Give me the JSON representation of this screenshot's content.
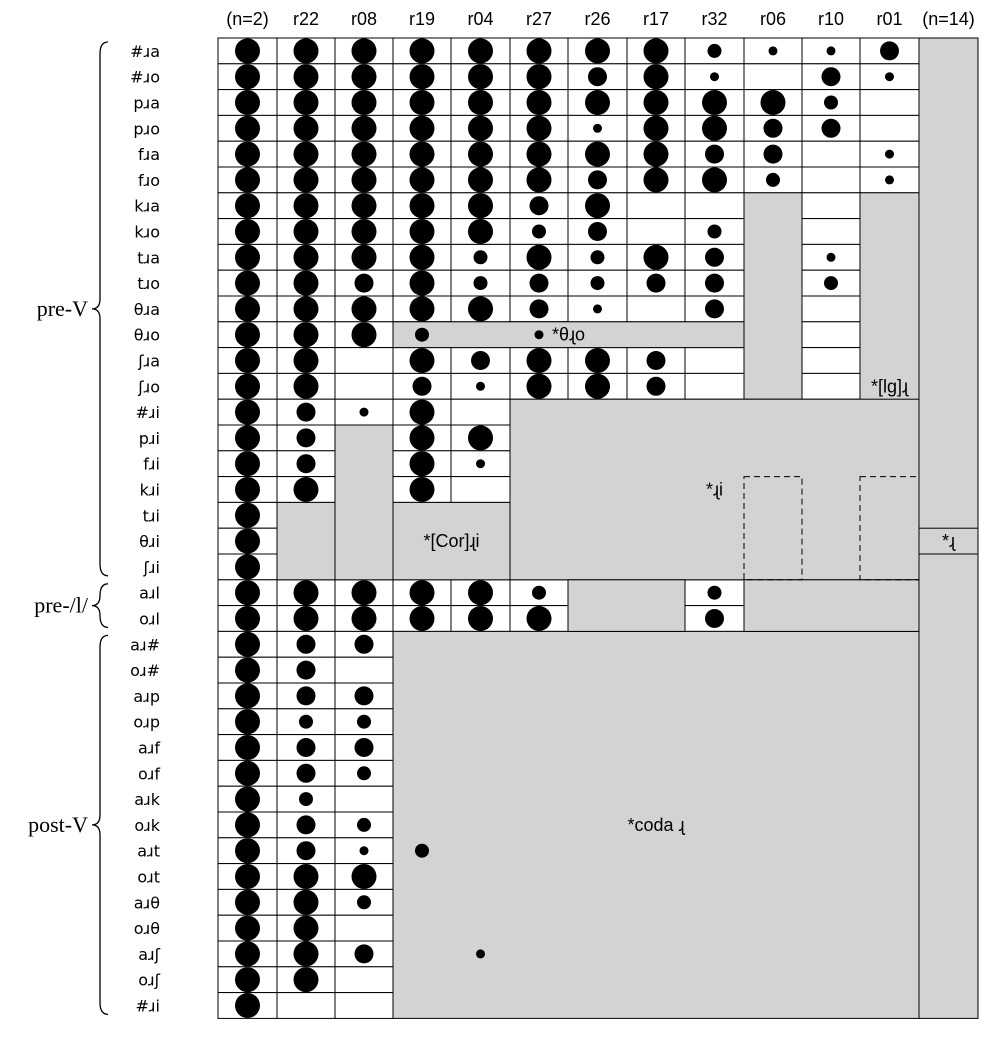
{
  "chart_data": {
    "type": "bubble-matrix",
    "title": "",
    "columns": [
      "(n=2)",
      "r22",
      "r08",
      "r19",
      "r04",
      "r27",
      "r26",
      "r17",
      "r32",
      "r06",
      "r10",
      "r01",
      "(n=14)"
    ],
    "rows": [
      "#ɹa",
      "#ɹo",
      "pɹa",
      "pɹo",
      "fɹa",
      "fɹo",
      "kɹa",
      "kɹo",
      "tɹa",
      "tɹo",
      "θɹa",
      "θɹo",
      "ʃɹa",
      "ʃɹo",
      "#ɹi",
      "pɹi",
      "fɹi",
      "kɹi",
      "tɹi",
      "θɹi",
      "ʃɹi",
      "aɹl",
      "oɹl",
      "aɹ#",
      "oɹ#",
      "aɹp",
      "oɹp",
      "aɹf",
      "oɹf",
      "aɹk",
      "oɹk",
      "aɹt",
      "oɹt",
      "aɹθ",
      "oɹθ",
      "aɹʃ",
      "oɹʃ",
      "#ɹi"
    ],
    "groups": [
      {
        "label": "pre-V",
        "rows": [
          0,
          20
        ]
      },
      {
        "label": "pre-/l/",
        "rows": [
          21,
          22
        ]
      },
      {
        "label": "post-V",
        "rows": [
          23,
          37
        ]
      }
    ],
    "regions": [
      {
        "label": "",
        "cols": [
          12,
          12
        ],
        "rows": [
          0,
          37
        ]
      },
      {
        "label": "*ɻ",
        "cols": [
          12,
          12
        ],
        "rows": [
          19,
          19
        ]
      },
      {
        "label": "*[lg]ɻ",
        "cols": [
          11,
          11
        ],
        "rows": [
          6,
          20
        ]
      },
      {
        "label": "",
        "cols": [
          9,
          9
        ],
        "rows": [
          6,
          13
        ]
      },
      {
        "label": "*θɻo",
        "cols": [
          3,
          8
        ],
        "rows": [
          11,
          11
        ]
      },
      {
        "label": "*ɻi",
        "cols": [
          5,
          11
        ],
        "rows": [
          14,
          20
        ]
      },
      {
        "label": "",
        "cols": [
          2,
          2
        ],
        "rows": [
          15,
          20
        ]
      },
      {
        "label": "*[Cor]ɻi",
        "cols": [
          3,
          4
        ],
        "rows": [
          18,
          20
        ]
      },
      {
        "label": "",
        "cols": [
          1,
          1
        ],
        "rows": [
          18,
          20
        ]
      },
      {
        "label": "*coda ɻ",
        "cols": [
          3,
          11
        ],
        "rows": [
          23,
          37
        ]
      },
      {
        "label": "",
        "cols": [
          6,
          7
        ],
        "rows": [
          21,
          22
        ]
      },
      {
        "label": "",
        "cols": [
          9,
          11
        ],
        "rows": [
          21,
          22
        ]
      }
    ],
    "dashed_boxes": [
      {
        "cols": [
          9,
          9
        ],
        "rows": [
          17,
          20
        ]
      },
      {
        "cols": [
          11,
          11
        ],
        "rows": [
          17,
          20
        ]
      }
    ],
    "extra_dots": [
      {
        "col": 3,
        "row": 31,
        "size": 2
      },
      {
        "col": 4,
        "row": 35,
        "size": 1
      }
    ],
    "values": [
      [
        4,
        4,
        4,
        4,
        4,
        4,
        4,
        4,
        2,
        1,
        1,
        3,
        null
      ],
      [
        4,
        4,
        4,
        4,
        4,
        4,
        3,
        4,
        1,
        0,
        3,
        1,
        null
      ],
      [
        4,
        4,
        4,
        4,
        4,
        4,
        4,
        4,
        4,
        4,
        2,
        0,
        null
      ],
      [
        4,
        4,
        4,
        4,
        4,
        4,
        1,
        4,
        4,
        3,
        3,
        0,
        null
      ],
      [
        4,
        4,
        4,
        4,
        4,
        4,
        4,
        4,
        3,
        3,
        0,
        1,
        null
      ],
      [
        4,
        4,
        4,
        4,
        4,
        4,
        3,
        4,
        4,
        2,
        0,
        1,
        null
      ],
      [
        4,
        4,
        4,
        4,
        4,
        3,
        4,
        0,
        0,
        null,
        0,
        null,
        null
      ],
      [
        4,
        4,
        4,
        4,
        4,
        2,
        3,
        0,
        2,
        null,
        0,
        null,
        null
      ],
      [
        4,
        4,
        4,
        4,
        2,
        4,
        2,
        4,
        3,
        null,
        1,
        null,
        null
      ],
      [
        4,
        4,
        3,
        4,
        2,
        3,
        2,
        3,
        3,
        null,
        2,
        null,
        null
      ],
      [
        4,
        4,
        4,
        4,
        4,
        3,
        1,
        0,
        3,
        null,
        0,
        null,
        null
      ],
      [
        4,
        4,
        4,
        2,
        null,
        1,
        null,
        null,
        null,
        null,
        0,
        null,
        null
      ],
      [
        4,
        4,
        0,
        4,
        3,
        4,
        4,
        3,
        0,
        null,
        0,
        null,
        null
      ],
      [
        4,
        4,
        0,
        3,
        1,
        4,
        4,
        3,
        0,
        null,
        0,
        null,
        null
      ],
      [
        4,
        3,
        1,
        4,
        0,
        null,
        null,
        null,
        null,
        null,
        null,
        null,
        null
      ],
      [
        4,
        3,
        null,
        4,
        4,
        null,
        null,
        null,
        null,
        null,
        null,
        null,
        null
      ],
      [
        4,
        3,
        null,
        4,
        1,
        null,
        null,
        null,
        null,
        null,
        null,
        null,
        null
      ],
      [
        4,
        4,
        null,
        4,
        0,
        null,
        null,
        null,
        null,
        null,
        null,
        null,
        null
      ],
      [
        4,
        null,
        null,
        null,
        null,
        null,
        null,
        null,
        null,
        null,
        null,
        null,
        null
      ],
      [
        4,
        null,
        null,
        null,
        null,
        null,
        null,
        null,
        null,
        null,
        null,
        null,
        null
      ],
      [
        4,
        null,
        null,
        null,
        null,
        null,
        null,
        null,
        null,
        null,
        null,
        null,
        null
      ],
      [
        4,
        4,
        4,
        4,
        4,
        2,
        null,
        null,
        2,
        null,
        null,
        null,
        null
      ],
      [
        4,
        4,
        4,
        4,
        4,
        4,
        null,
        null,
        3,
        null,
        null,
        null,
        null
      ],
      [
        4,
        3,
        3,
        null,
        null,
        null,
        null,
        null,
        null,
        null,
        null,
        null,
        null
      ],
      [
        4,
        3,
        0,
        null,
        null,
        null,
        null,
        null,
        null,
        null,
        null,
        null,
        null
      ],
      [
        4,
        3,
        3,
        null,
        null,
        null,
        null,
        null,
        null,
        null,
        null,
        null,
        null
      ],
      [
        4,
        2,
        2,
        null,
        null,
        null,
        null,
        null,
        null,
        null,
        null,
        null,
        null
      ],
      [
        4,
        3,
        3,
        null,
        null,
        null,
        null,
        null,
        null,
        null,
        null,
        null,
        null
      ],
      [
        4,
        3,
        2,
        null,
        null,
        null,
        null,
        null,
        null,
        null,
        null,
        null,
        null
      ],
      [
        4,
        2,
        0,
        null,
        null,
        null,
        null,
        null,
        null,
        null,
        null,
        null,
        null
      ],
      [
        4,
        3,
        2,
        null,
        null,
        null,
        null,
        null,
        null,
        null,
        null,
        null,
        null
      ],
      [
        4,
        3,
        1,
        null,
        null,
        null,
        null,
        null,
        null,
        null,
        null,
        null,
        null
      ],
      [
        4,
        4,
        4,
        null,
        null,
        null,
        null,
        null,
        null,
        null,
        null,
        null,
        null
      ],
      [
        4,
        4,
        2,
        null,
        null,
        null,
        null,
        null,
        null,
        null,
        null,
        null,
        null
      ],
      [
        4,
        4,
        0,
        null,
        null,
        null,
        null,
        null,
        null,
        null,
        null,
        null,
        null
      ],
      [
        4,
        4,
        3,
        null,
        null,
        null,
        null,
        null,
        null,
        null,
        null,
        null,
        null
      ],
      [
        4,
        4,
        0,
        null,
        null,
        null,
        null,
        null,
        null,
        null,
        null,
        null,
        null
      ],
      [
        4,
        0,
        0,
        null,
        null,
        null,
        null,
        null,
        null,
        null,
        null,
        null,
        null
      ]
    ],
    "dot_size_scale": {
      "0": "none",
      "1": "smallest",
      "2": "small",
      "3": "medium",
      "4": "large"
    },
    "colors": {
      "dot": "#000000",
      "region_fill": "#d3d3d3",
      "cell_border": "#000000"
    }
  }
}
